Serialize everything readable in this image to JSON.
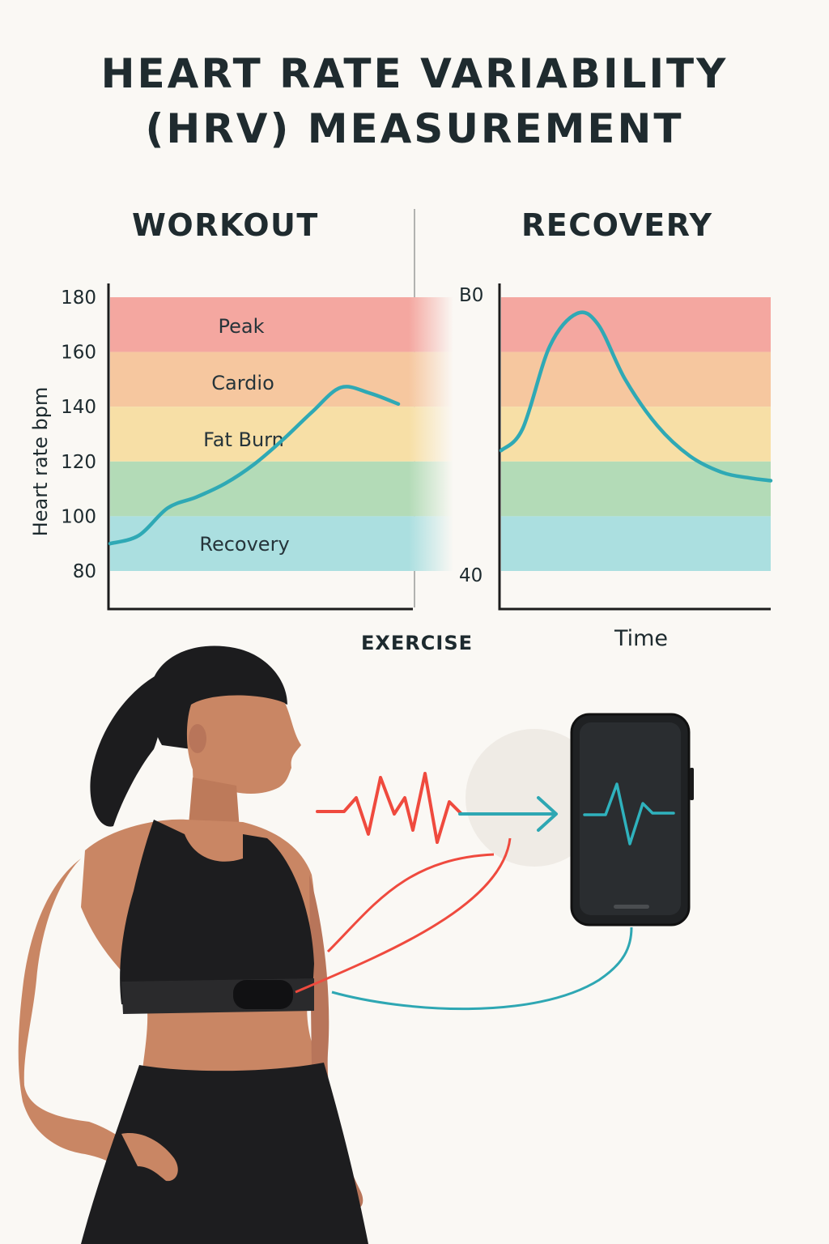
{
  "title": {
    "line1": "HEART RATE VARIABILITY",
    "line2": "(HRV) MEASUREMENT"
  },
  "sections": {
    "workout": "WORKOUT",
    "recovery": "RECOVERY"
  },
  "chart_data": [
    {
      "type": "line",
      "panel": "workout",
      "title": "WORKOUT",
      "ylabel": "Heart rate bpm",
      "xlabel": "EXERCISE",
      "ylim": [
        80,
        180
      ],
      "y_ticks": [
        "180",
        "160",
        "140",
        "120",
        "100",
        "80"
      ],
      "zones": [
        {
          "name": "Peak",
          "from": 160,
          "to": 180,
          "color": "#f4a7a0"
        },
        {
          "name": "Cardio",
          "from": 140,
          "to": 160,
          "color": "#f6c79f"
        },
        {
          "name": "Fat Burn",
          "from": 120,
          "to": 140,
          "color": "#f7dfa6"
        },
        {
          "name": "",
          "from": 100,
          "to": 120,
          "color": "#b3dbb7"
        },
        {
          "name": "Recovery",
          "from": 80,
          "to": 100,
          "color": "#abdfe0"
        }
      ],
      "series": [
        {
          "x": [
            0,
            0.1,
            0.2,
            0.3,
            0.4,
            0.5,
            0.6,
            0.7,
            0.8,
            0.9,
            1.0
          ],
          "values": [
            90,
            93,
            103,
            107,
            112,
            119,
            128,
            138,
            147,
            145,
            141
          ],
          "color": "#2fa9b5"
        }
      ]
    },
    {
      "type": "line",
      "panel": "recovery",
      "title": "RECOVERY",
      "xlabel": "Time",
      "y_ticks": [
        "B0",
        "40"
      ],
      "series": [
        {
          "x": [
            0,
            0.08,
            0.18,
            0.28,
            0.36,
            0.46,
            0.58,
            0.7,
            0.82,
            0.92,
            1.0
          ],
          "values": [
            124,
            132,
            162,
            174,
            170,
            150,
            133,
            122,
            116,
            114,
            113
          ],
          "color": "#2fa9b5"
        }
      ]
    }
  ],
  "illustration": {
    "colors": {
      "signal_red": "#ef4a3e",
      "signal_teal": "#2ea7b3",
      "skin": "#c98664",
      "clothing": "#1d1d1f",
      "phone": "#222426"
    },
    "icons": [
      "heartbeat-signal",
      "arrow-right",
      "smartphone",
      "chest-strap-sensor"
    ]
  }
}
